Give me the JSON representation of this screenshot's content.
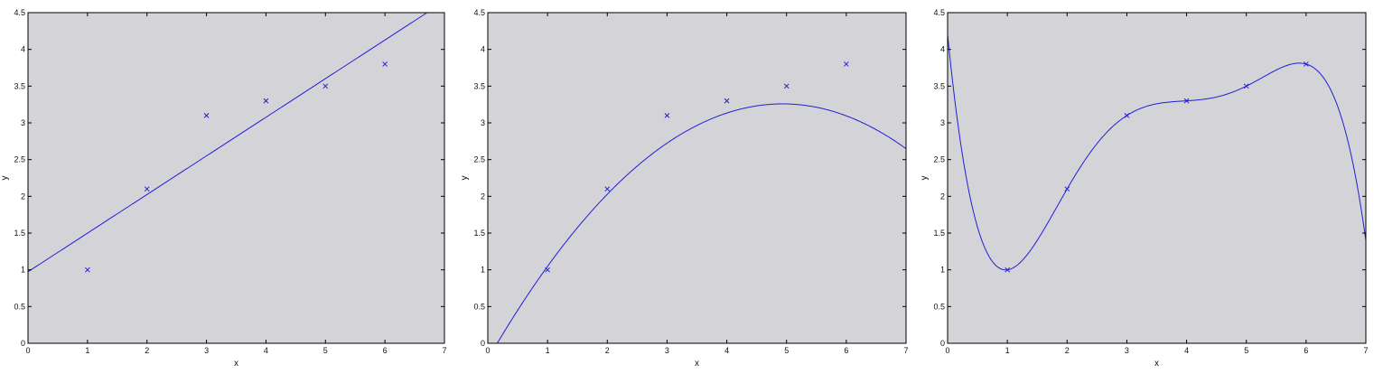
{
  "colors": {
    "plot_bg": "#d4d4d8",
    "line": "#1f1fd6",
    "marker": "#1f1fd6",
    "axis": "#000000"
  },
  "chart_data": [
    {
      "type": "scatter",
      "title": "",
      "xlabel": "x",
      "ylabel": "y",
      "xlim": [
        0,
        7
      ],
      "ylim": [
        0,
        4.5
      ],
      "xticks": [
        "0",
        "1",
        "2",
        "3",
        "4",
        "5",
        "6",
        "7"
      ],
      "yticks": [
        "0",
        "0.5",
        "1",
        "1.5",
        "2",
        "2.5",
        "3",
        "3.5",
        "4",
        "4.5"
      ],
      "points": {
        "x": [
          1,
          2,
          3,
          4,
          5,
          6
        ],
        "y": [
          1,
          2.1,
          3.1,
          3.3,
          3.5,
          3.8
        ]
      },
      "fit": {
        "kind": "linear",
        "coefficients": [
          0.9733,
          0.5257
        ]
      },
      "grid": false
    },
    {
      "type": "scatter",
      "title": "",
      "xlabel": "x",
      "ylabel": "y",
      "xlim": [
        0,
        7
      ],
      "ylim": [
        0,
        4.5
      ],
      "xticks": [
        "0",
        "1",
        "2",
        "3",
        "4",
        "5",
        "6",
        "7"
      ],
      "yticks": [
        "0",
        "0.5",
        "1",
        "1.5",
        "2",
        "2.5",
        "3",
        "3.5",
        "4",
        "4.5"
      ],
      "points": {
        "x": [
          1,
          2,
          3,
          4,
          5,
          6
        ],
        "y": [
          1,
          2.1,
          3.1,
          3.3,
          3.5,
          3.8
        ]
      },
      "fit": {
        "kind": "quadratic",
        "coefficients": [
          -0.22,
          1.41,
          -0.1429
        ]
      },
      "grid": false
    },
    {
      "type": "scatter",
      "title": "",
      "xlabel": "x",
      "ylabel": "y",
      "xlim": [
        0,
        7
      ],
      "ylim": [
        0,
        4.5
      ],
      "xticks": [
        "0",
        "1",
        "2",
        "3",
        "4",
        "5",
        "6",
        "7"
      ],
      "yticks": [
        "0",
        "0.5",
        "1",
        "1.5",
        "2",
        "2.5",
        "3",
        "3.5",
        "4",
        "4.5"
      ],
      "points": {
        "x": [
          1,
          2,
          3,
          4,
          5,
          6
        ],
        "y": [
          1,
          2.1,
          3.1,
          3.3,
          3.5,
          3.8
        ]
      },
      "fit": {
        "kind": "interpolating_polynomial",
        "degree": 5
      },
      "grid": false
    }
  ]
}
